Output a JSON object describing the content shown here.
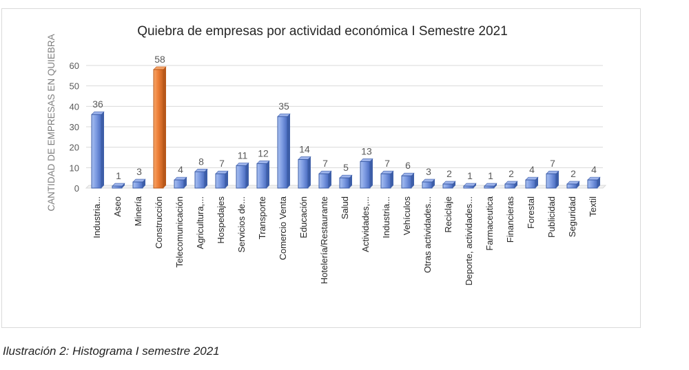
{
  "chart_data": {
    "type": "bar",
    "title": "Quiebra de empresas por actividad económica I Semestre 2021",
    "xlabel": "",
    "ylabel": "CANTIDAD DE EMPRESAS EN QUIEBRA",
    "ylim": [
      0,
      60
    ],
    "yticks": [
      "0",
      "10",
      "20",
      "30",
      "40",
      "50",
      "60"
    ],
    "grid": true,
    "categories": [
      "Industria...",
      "Aseo",
      "Minería",
      "Construcción",
      "Telecomunicación",
      "Agricultura,...",
      "Hospedajes",
      "Servicios de...",
      "Transporte",
      "Comercio Venta",
      "Educación",
      "Hotelería/Restaurante",
      "Salud",
      "Actividades,...",
      "Industria...",
      "Vehículos",
      "Otras actividades...",
      "Reciclaje",
      "Deporte, actividades...",
      "Farmaceutica",
      "Financieras",
      "Forestal",
      "Publicidad",
      "Seguridad",
      "Textil"
    ],
    "values": [
      36,
      1,
      3,
      58,
      4,
      8,
      7,
      11,
      12,
      35,
      14,
      7,
      5,
      13,
      7,
      6,
      3,
      2,
      1,
      1,
      2,
      4,
      7,
      2,
      4
    ],
    "highlight_index": 3,
    "colors": {
      "bar": "#6f8fdc",
      "bar_dark": "#3d5ea8",
      "highlight": "#ed7d31",
      "highlight_dark": "#b8581a",
      "grid": "#d9d9d9",
      "text": "#595959",
      "title": "#262626"
    }
  },
  "caption": "Ilustración 2: Histograma I semestre 2021"
}
